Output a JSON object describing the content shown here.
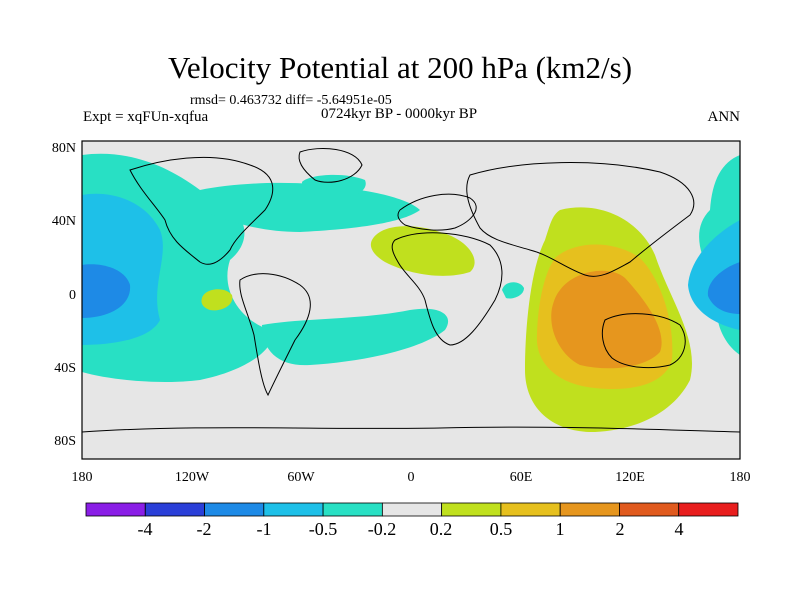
{
  "title": "Velocity Potential at 200 hPa (km2/s)",
  "stats": "rmsd= 0.463732 diff= -5.64951e-05",
  "left_label": "Expt = xqFUn-xqfua",
  "center_label": "0724kyr BP - 0000kyr BP",
  "right_label": "ANN",
  "axes": {
    "y_ticks": [
      "80N",
      "40N",
      "0",
      "40S",
      "80S"
    ],
    "x_ticks": [
      "180",
      "120W",
      "60W",
      "0",
      "60E",
      "120E",
      "180"
    ]
  },
  "colorbar": {
    "labels": [
      "-4",
      "-2",
      "-1",
      "-0.5",
      "-0.2",
      "0.2",
      "0.5",
      "1",
      "2",
      "4"
    ],
    "colors": [
      "#8a1ee6",
      "#2a3fd8",
      "#1e8ae6",
      "#1ec0e8",
      "#28e0c4",
      "#e6e6e6",
      "#c0e01e",
      "#e6c01e",
      "#e6961e",
      "#e05a1e",
      "#e81e1e"
    ]
  },
  "colors": {
    "neutral": "#e6e6e6",
    "light_cyan": "#28e0c4",
    "cyan": "#1ec0e8",
    "blue": "#1e8ae6",
    "lime": "#c0e01e",
    "yellow": "#e6c01e",
    "orange": "#e6961e"
  }
}
